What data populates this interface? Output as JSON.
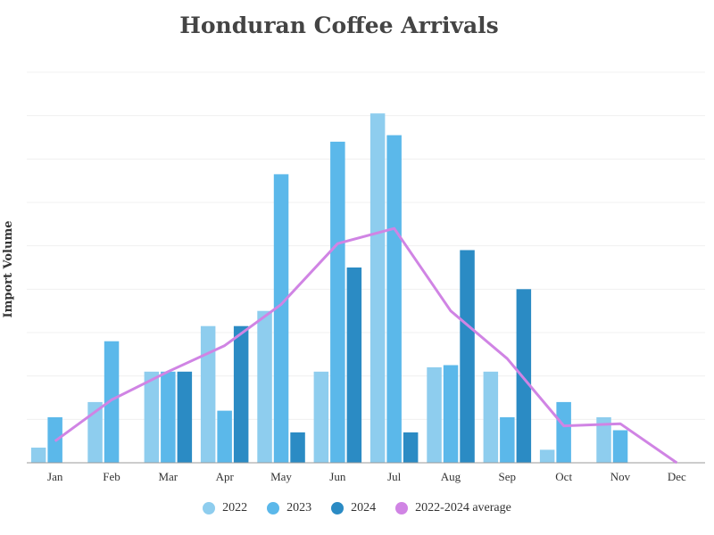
{
  "chart_data": {
    "type": "bar",
    "title": "Honduran Coffee Arrivals",
    "xlabel": "",
    "ylabel": "Import Volume",
    "categories": [
      "Jan",
      "Feb",
      "Mar",
      "Apr",
      "May",
      "Jun",
      "Jul",
      "Aug",
      "Sep",
      "Oct",
      "Nov",
      "Dec"
    ],
    "ylim": [
      0,
      90
    ],
    "grid": true,
    "legend_position": "bottom",
    "series": [
      {
        "name": "2022",
        "type": "bar",
        "color": "#8ecdee",
        "values": [
          3.5,
          14,
          21,
          31.5,
          35,
          21,
          80.5,
          22,
          21,
          3,
          10.5,
          null
        ]
      },
      {
        "name": "2023",
        "type": "bar",
        "color": "#5bb8ea",
        "values": [
          10.5,
          28,
          21,
          12,
          66.5,
          74,
          75.5,
          22.5,
          10.5,
          14,
          7.5,
          null
        ]
      },
      {
        "name": "2024",
        "type": "bar",
        "color": "#2b8bc4",
        "values": [
          null,
          null,
          21,
          31.5,
          7,
          45,
          7,
          49,
          40,
          null,
          null,
          null
        ]
      },
      {
        "name": "2022-2024 average",
        "type": "line",
        "color": "#d084e4",
        "values": [
          5,
          14.5,
          21,
          27,
          36.5,
          50.5,
          54,
          35,
          24,
          8.5,
          9,
          0
        ]
      }
    ]
  }
}
